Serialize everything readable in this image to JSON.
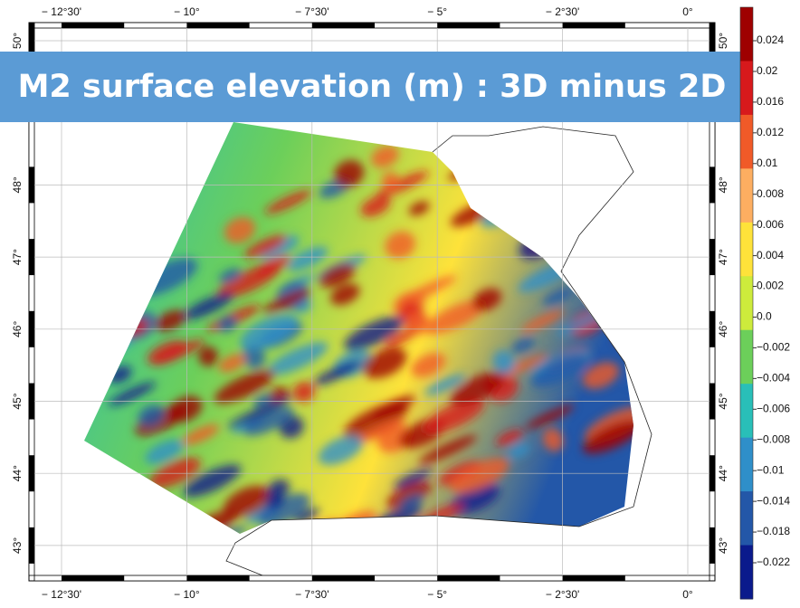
{
  "map": {
    "title": "M2 surface elevation (m) : 3D minus 2D",
    "lon_ticks": [
      {
        "value": -12.5,
        "label": "− 12°30'"
      },
      {
        "value": -10,
        "label": "− 10°"
      },
      {
        "value": -7.5,
        "label": "− 7°30'"
      },
      {
        "value": -5,
        "label": "− 5°"
      },
      {
        "value": -2.5,
        "label": "− 2°30'"
      },
      {
        "value": 0,
        "label": "0°"
      }
    ],
    "lat_ticks": [
      {
        "value": 43,
        "label": "43°"
      },
      {
        "value": 44,
        "label": "44°"
      },
      {
        "value": 45,
        "label": "45°"
      },
      {
        "value": 46,
        "label": "46°"
      },
      {
        "value": 47,
        "label": "47°"
      },
      {
        "value": 48,
        "label": "48°"
      },
      {
        "value": 50,
        "label": "50°"
      }
    ],
    "colorbar": {
      "ticks": [
        0.024,
        0.02,
        0.016,
        0.012,
        0.01,
        0.008,
        0.006,
        0.004,
        0.002,
        {
          "value": 0,
          "label": "0.0"
        },
        {
          "value": -0.002,
          "label": "−0.002"
        },
        {
          "value": -0.004,
          "label": "−0.004"
        },
        {
          "value": -0.006,
          "label": "−0.006"
        },
        {
          "value": -0.008,
          "label": "−0.008"
        },
        {
          "value": -0.01,
          "label": "−0.01"
        },
        {
          "value": -0.014,
          "label": "−0.014"
        },
        {
          "value": -0.018,
          "label": "−0.018"
        },
        {
          "value": -0.022,
          "label": "−0.022"
        }
      ],
      "colors": [
        "#9e0000",
        "#d7191c",
        "#f05a28",
        "#fdae61",
        "#fee23a",
        "#cdeb3c",
        "#6ccf5a",
        "#29bfb8",
        "#2f8fc9",
        "#2357a8",
        "#0a1a8c"
      ]
    }
  }
}
